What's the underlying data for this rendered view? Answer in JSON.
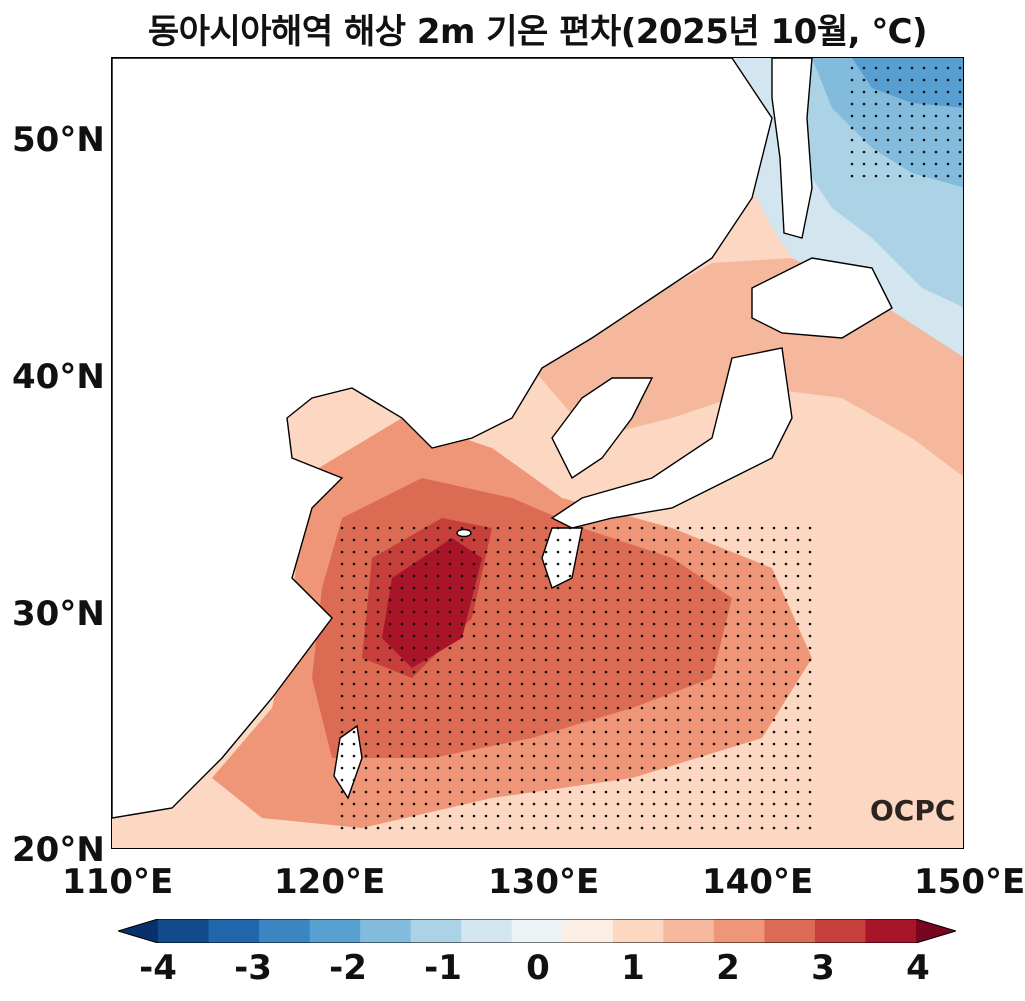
{
  "title": "동아시아해역 해상 2m 기온 편차(2025년 10월, ℃)",
  "axes": {
    "latitude_labels": [
      "50°N",
      "40°N",
      "30°N",
      "20°N"
    ],
    "longitude_labels": [
      "110°E",
      "120°E",
      "130°E",
      "140°E",
      "150°E"
    ],
    "lon_range": [
      110,
      150
    ],
    "lat_range": [
      20,
      53.5
    ]
  },
  "logo": "OCPC",
  "colorbar": {
    "tick_labels": [
      "-4",
      "-3",
      "-2",
      "-1",
      "0",
      "1",
      "2",
      "3",
      "4"
    ],
    "levels": [
      -4,
      -3.5,
      -3,
      -2.5,
      -2,
      -1.5,
      -1,
      -0.5,
      0,
      0.5,
      1,
      1.5,
      2,
      2.5,
      3,
      3.5,
      4
    ],
    "colors": [
      "#08306b",
      "#124a8c",
      "#2166ac",
      "#3a86c2",
      "#569fd0",
      "#82bbdc",
      "#acd2e6",
      "#d3e5ef",
      "#ecf2f5",
      "#fbeee5",
      "#fcd7c2",
      "#f6b89c",
      "#ee9677",
      "#dc6b53",
      "#c63f3b",
      "#a81529",
      "#78061f"
    ],
    "extend": "both"
  },
  "colors": {
    "frame": "#000000",
    "land": "#ffffff",
    "stipple": "#111111"
  }
}
